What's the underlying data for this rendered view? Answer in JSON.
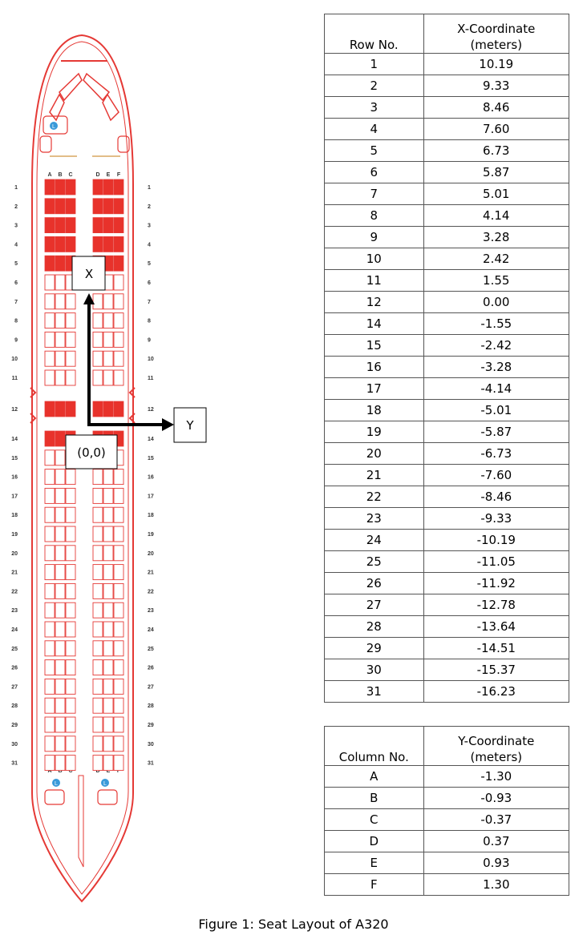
{
  "seat_letters_left": [
    "A",
    "B",
    "C"
  ],
  "seat_letters_right": [
    "D",
    "E",
    "F"
  ],
  "lavatory_label": "L",
  "diagram": {
    "x_axis_label": "X",
    "y_axis_label": "Y",
    "origin_label": "(0,0)"
  },
  "cabin_rows": [
    1,
    2,
    3,
    4,
    5,
    6,
    7,
    8,
    9,
    10,
    11,
    12,
    14,
    15,
    16,
    17,
    18,
    19,
    20,
    21,
    22,
    23,
    24,
    25,
    26,
    27,
    28,
    29,
    30,
    31
  ],
  "highlighted_rows": [
    1,
    2,
    3,
    4,
    5,
    12,
    14
  ],
  "colors": {
    "outline": "#e53935",
    "seat_fill": "#e8322b",
    "seat_empty": "#ffffff",
    "lav_icon": "#3a9ad9"
  },
  "row_table": {
    "header_col1": "Row No.",
    "header_col2_line1": "X-Coordinate",
    "header_col2_line2": "(meters)",
    "rows": [
      [
        "1",
        "10.19"
      ],
      [
        "2",
        "9.33"
      ],
      [
        "3",
        "8.46"
      ],
      [
        "4",
        "7.60"
      ],
      [
        "5",
        "6.73"
      ],
      [
        "6",
        "5.87"
      ],
      [
        "7",
        "5.01"
      ],
      [
        "8",
        "4.14"
      ],
      [
        "9",
        "3.28"
      ],
      [
        "10",
        "2.42"
      ],
      [
        "11",
        "1.55"
      ],
      [
        "12",
        "0.00"
      ],
      [
        "14",
        "-1.55"
      ],
      [
        "15",
        "-2.42"
      ],
      [
        "16",
        "-3.28"
      ],
      [
        "17",
        "-4.14"
      ],
      [
        "18",
        "-5.01"
      ],
      [
        "19",
        "-5.87"
      ],
      [
        "20",
        "-6.73"
      ],
      [
        "21",
        "-7.60"
      ],
      [
        "22",
        "-8.46"
      ],
      [
        "23",
        "-9.33"
      ],
      [
        "24",
        "-10.19"
      ],
      [
        "25",
        "-11.05"
      ],
      [
        "26",
        "-11.92"
      ],
      [
        "27",
        "-12.78"
      ],
      [
        "28",
        "-13.64"
      ],
      [
        "29",
        "-14.51"
      ],
      [
        "30",
        "-15.37"
      ],
      [
        "31",
        "-16.23"
      ]
    ]
  },
  "column_table": {
    "header_col1": "Column No.",
    "header_col2_line1": "Y-Coordinate",
    "header_col2_line2": "(meters)",
    "rows": [
      [
        "A",
        "-1.30"
      ],
      [
        "B",
        "-0.93"
      ],
      [
        "C",
        "-0.37"
      ],
      [
        "D",
        "0.37"
      ],
      [
        "E",
        "0.93"
      ],
      [
        "F",
        "1.30"
      ]
    ]
  },
  "caption": "Figure 1: Seat Layout of A320"
}
